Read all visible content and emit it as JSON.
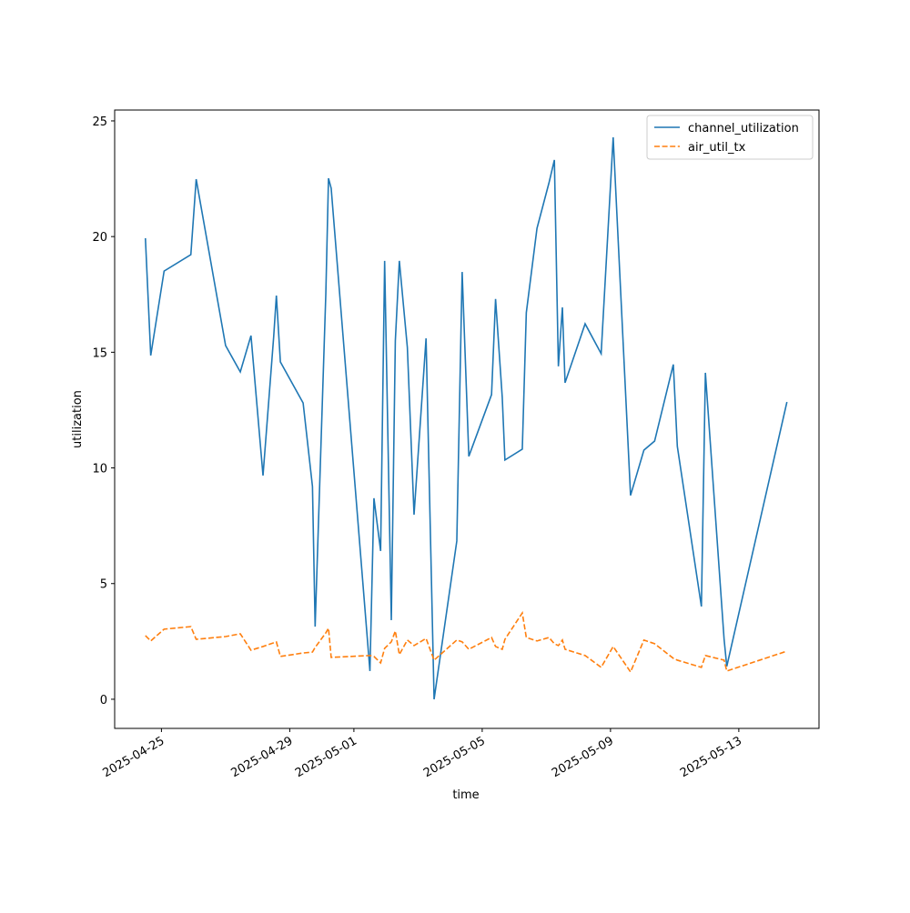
{
  "chart_data": {
    "type": "line",
    "xlabel": "time",
    "ylabel": "utilization",
    "x": [
      "2025-04-24 12:00",
      "2025-04-24 16:00",
      "2025-04-25 02:00",
      "2025-04-25 22:00",
      "2025-04-26 02:00",
      "2025-04-27 00:00",
      "2025-04-27 11:00",
      "2025-04-27 19:00",
      "2025-04-28 04:00",
      "2025-04-28 12:00",
      "2025-04-28 14:00",
      "2025-04-28 17:00",
      "2025-04-29 10:00",
      "2025-04-29 17:00",
      "2025-04-29 19:00",
      "2025-04-30 03:00",
      "2025-04-30 05:00",
      "2025-04-30 07:00",
      "2025-05-01 12:00",
      "2025-05-01 15:00",
      "2025-05-01 20:00",
      "2025-05-01 23:00",
      "2025-05-02 04:00",
      "2025-05-02 07:00",
      "2025-05-02 10:00",
      "2025-05-02 16:00",
      "2025-05-02 21:00",
      "2025-05-03 06:00",
      "2025-05-03 12:00",
      "2025-05-04 05:00",
      "2025-05-04 09:00",
      "2025-05-04 14:00",
      "2025-05-05 07:00",
      "2025-05-05 10:00",
      "2025-05-05 15:00",
      "2025-05-05 17:00",
      "2025-05-06 06:00",
      "2025-05-06 09:00",
      "2025-05-06 17:00",
      "2025-05-07 02:00",
      "2025-05-07 06:00",
      "2025-05-07 09:00",
      "2025-05-07 12:00",
      "2025-05-07 14:00",
      "2025-05-08 05:00",
      "2025-05-08 17:00",
      "2025-05-09 02:00",
      "2025-05-09 15:00",
      "2025-05-10 01:00",
      "2025-05-10 09:00",
      "2025-05-10 23:00",
      "2025-05-11 02:00",
      "2025-05-11 20:00",
      "2025-05-11 23:00",
      "2025-05-12 13:00",
      "2025-05-12 15:00",
      "2025-05-14 12:00"
    ],
    "series": [
      {
        "name": "channel_utilization",
        "color": "#1f77b4",
        "dash": "solid",
        "values": [
          19.93,
          14.86,
          18.51,
          19.22,
          22.48,
          15.29,
          14.15,
          15.72,
          9.67,
          15.68,
          17.45,
          14.58,
          12.81,
          9.2,
          3.14,
          17.53,
          22.52,
          22.09,
          1.22,
          8.69,
          6.41,
          18.95,
          3.42,
          15.49,
          18.95,
          15.21,
          7.98,
          15.6,
          0,
          6.84,
          18.47,
          10.5,
          13.17,
          17.3,
          13.05,
          10.34,
          10.81,
          16.71,
          20.36,
          22.33,
          23.31,
          14.39,
          16.94,
          13.68,
          16.23,
          14.94,
          24.29,
          8.81,
          10.77,
          11.16,
          14.47,
          10.93,
          4.01,
          14.11,
          2.59,
          1.42,
          12.85
        ]
      },
      {
        "name": "air_util_tx",
        "color": "#ff7f0e",
        "dash": "dashed",
        "values": [
          2.75,
          2.52,
          3.03,
          3.14,
          2.59,
          2.71,
          2.83,
          2.12,
          2.28,
          2.44,
          2.48,
          1.85,
          2.0,
          2.04,
          2.24,
          2.87,
          3.07,
          1.81,
          1.89,
          1.85,
          1.57,
          2.2,
          2.48,
          2.95,
          1.93,
          2.56,
          2.32,
          2.63,
          1.69,
          2.56,
          2.48,
          2.16,
          2.67,
          2.28,
          2.16,
          2.59,
          3.73,
          2.67,
          2.52,
          2.67,
          2.4,
          2.32,
          2.56,
          2.16,
          1.89,
          1.38,
          2.28,
          1.18,
          2.56,
          2.4,
          1.77,
          1.69,
          1.38,
          1.89,
          1.69,
          1.22,
          2.08
        ]
      }
    ],
    "xlim": [
      "2025-04-23 13:00",
      "2025-05-15 12:00"
    ],
    "xticks": [
      "2025-04-25",
      "2025-04-29",
      "2025-05-01",
      "2025-05-05",
      "2025-05-09",
      "2025-05-13"
    ],
    "ylim": [
      -1.26,
      25.47
    ],
    "yticks": [
      0,
      5,
      10,
      15,
      20,
      25
    ],
    "grid": false,
    "legend": "upper right"
  }
}
